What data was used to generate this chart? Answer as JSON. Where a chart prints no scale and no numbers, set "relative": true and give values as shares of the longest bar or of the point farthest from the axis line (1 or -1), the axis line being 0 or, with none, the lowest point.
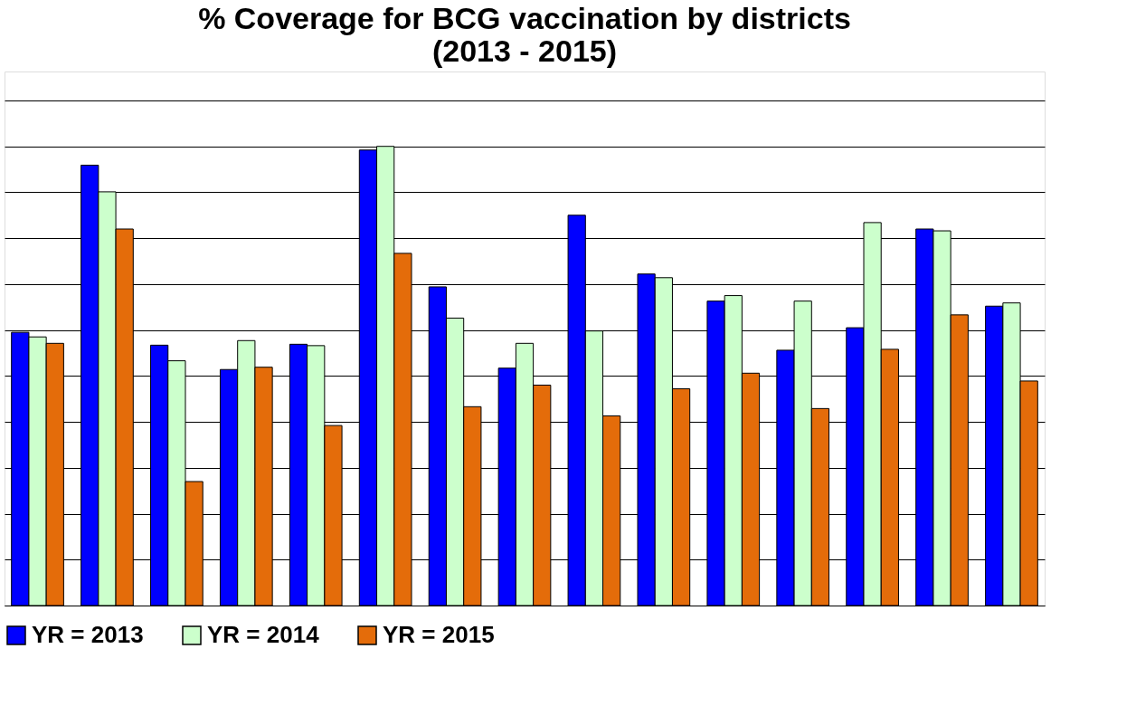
{
  "chart_data": {
    "type": "bar",
    "title": "% Coverage for BCG vaccination by districts\n(2013 - 2015)",
    "relative": true,
    "grid": "y",
    "legend": "bottom",
    "categories": [
      null,
      null,
      null,
      null,
      null,
      null,
      null,
      null,
      null,
      null,
      null,
      null,
      null,
      null,
      null
    ],
    "series": [
      {
        "name": "YR = 2013",
        "color": "#0000ff",
        "values": [
          0.595,
          0.959,
          0.567,
          0.514,
          0.569,
          0.992,
          0.694,
          0.517,
          0.85,
          0.722,
          0.663,
          0.556,
          0.605,
          0.82,
          0.652
        ]
      },
      {
        "name": "YR = 2014",
        "color": "#ccffcc",
        "values": [
          0.585,
          0.901,
          0.533,
          0.577,
          0.566,
          1,
          0.626,
          0.571,
          0.598,
          0.714,
          0.675,
          0.663,
          0.834,
          0.816,
          0.659
        ]
      },
      {
        "name": "YR = 2015",
        "color": "#e46c0a",
        "values": [
          0.571,
          0.82,
          0.27,
          0.519,
          0.392,
          0.767,
          0.433,
          0.48,
          0.413,
          0.472,
          0.506,
          0.429,
          0.558,
          0.633,
          0.489
        ]
      }
    ]
  }
}
